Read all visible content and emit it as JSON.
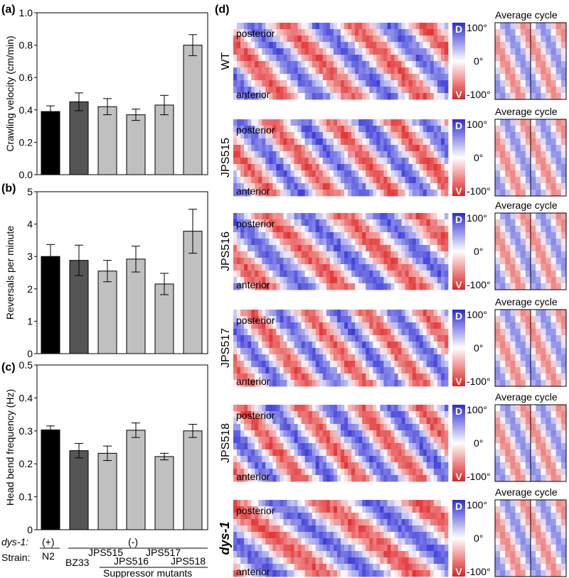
{
  "chart_data": [
    {
      "panel": "(a)",
      "type": "bar",
      "ylabel": "Crawling velocity (cm/min)",
      "ylim": [
        0,
        1.0
      ],
      "yticks": [
        "0.0",
        "0.2",
        "0.4",
        "0.6",
        "0.8",
        "1.0"
      ],
      "categories": [
        "N2",
        "BZ33",
        "JPS515",
        "JPS516",
        "JPS517",
        "JPS518"
      ],
      "values": [
        0.39,
        0.45,
        0.42,
        0.37,
        0.43,
        0.8
      ],
      "errors": [
        0.035,
        0.055,
        0.05,
        0.035,
        0.06,
        0.065
      ],
      "colors": [
        "#000000",
        "#555555",
        "#c0c0c0",
        "#c0c0c0",
        "#c0c0c0",
        "#c0c0c0"
      ]
    },
    {
      "panel": "(b)",
      "type": "bar",
      "ylabel": "Reversals per minute",
      "ylim": [
        0,
        5
      ],
      "yticks": [
        "0",
        "1",
        "2",
        "3",
        "4",
        "5"
      ],
      "categories": [
        "N2",
        "BZ33",
        "JPS515",
        "JPS516",
        "JPS517",
        "JPS518"
      ],
      "values": [
        3.0,
        2.88,
        2.55,
        2.92,
        2.15,
        3.78
      ],
      "errors": [
        0.37,
        0.47,
        0.33,
        0.4,
        0.33,
        0.68
      ],
      "colors": [
        "#000000",
        "#555555",
        "#c0c0c0",
        "#c0c0c0",
        "#c0c0c0",
        "#c0c0c0"
      ]
    },
    {
      "panel": "(c)",
      "type": "bar",
      "ylabel": "Head bend frequency (Hz)",
      "ylim": [
        0,
        0.5
      ],
      "yticks": [
        "0",
        "0.1",
        "0.2",
        "0.3",
        "0.4",
        "0.5"
      ],
      "categories": [
        "N2",
        "BZ33",
        "JPS515",
        "JPS516",
        "JPS517",
        "JPS518"
      ],
      "values": [
        0.303,
        0.24,
        0.232,
        0.302,
        0.222,
        0.3
      ],
      "errors": [
        0.012,
        0.022,
        0.022,
        0.022,
        0.01,
        0.02
      ],
      "colors": [
        "#000000",
        "#555555",
        "#c0c0c0",
        "#c0c0c0",
        "#c0c0c0",
        "#c0c0c0"
      ]
    },
    {
      "panel": "(d)",
      "type": "heatmap",
      "rows": [
        "WT",
        "JPS515",
        "JPS516",
        "JPS517",
        "JPS518",
        "dys-1"
      ],
      "posterior_label": "posterior",
      "anterior_label": "anterior",
      "colorbar_top": "D",
      "colorbar_bottom": "V",
      "colorbar_ticks": [
        "100°",
        "0°",
        "-100°"
      ],
      "average_title": "Average cycle",
      "colors": {
        "dorsal": "#2b2bd6",
        "ventral": "#e02020"
      }
    }
  ],
  "labels": {
    "dys_label": "dys-1:",
    "plus": "(+)",
    "minus": "(-)",
    "strain_label": "Strain:",
    "suppressor": "Suppressor mutants"
  }
}
